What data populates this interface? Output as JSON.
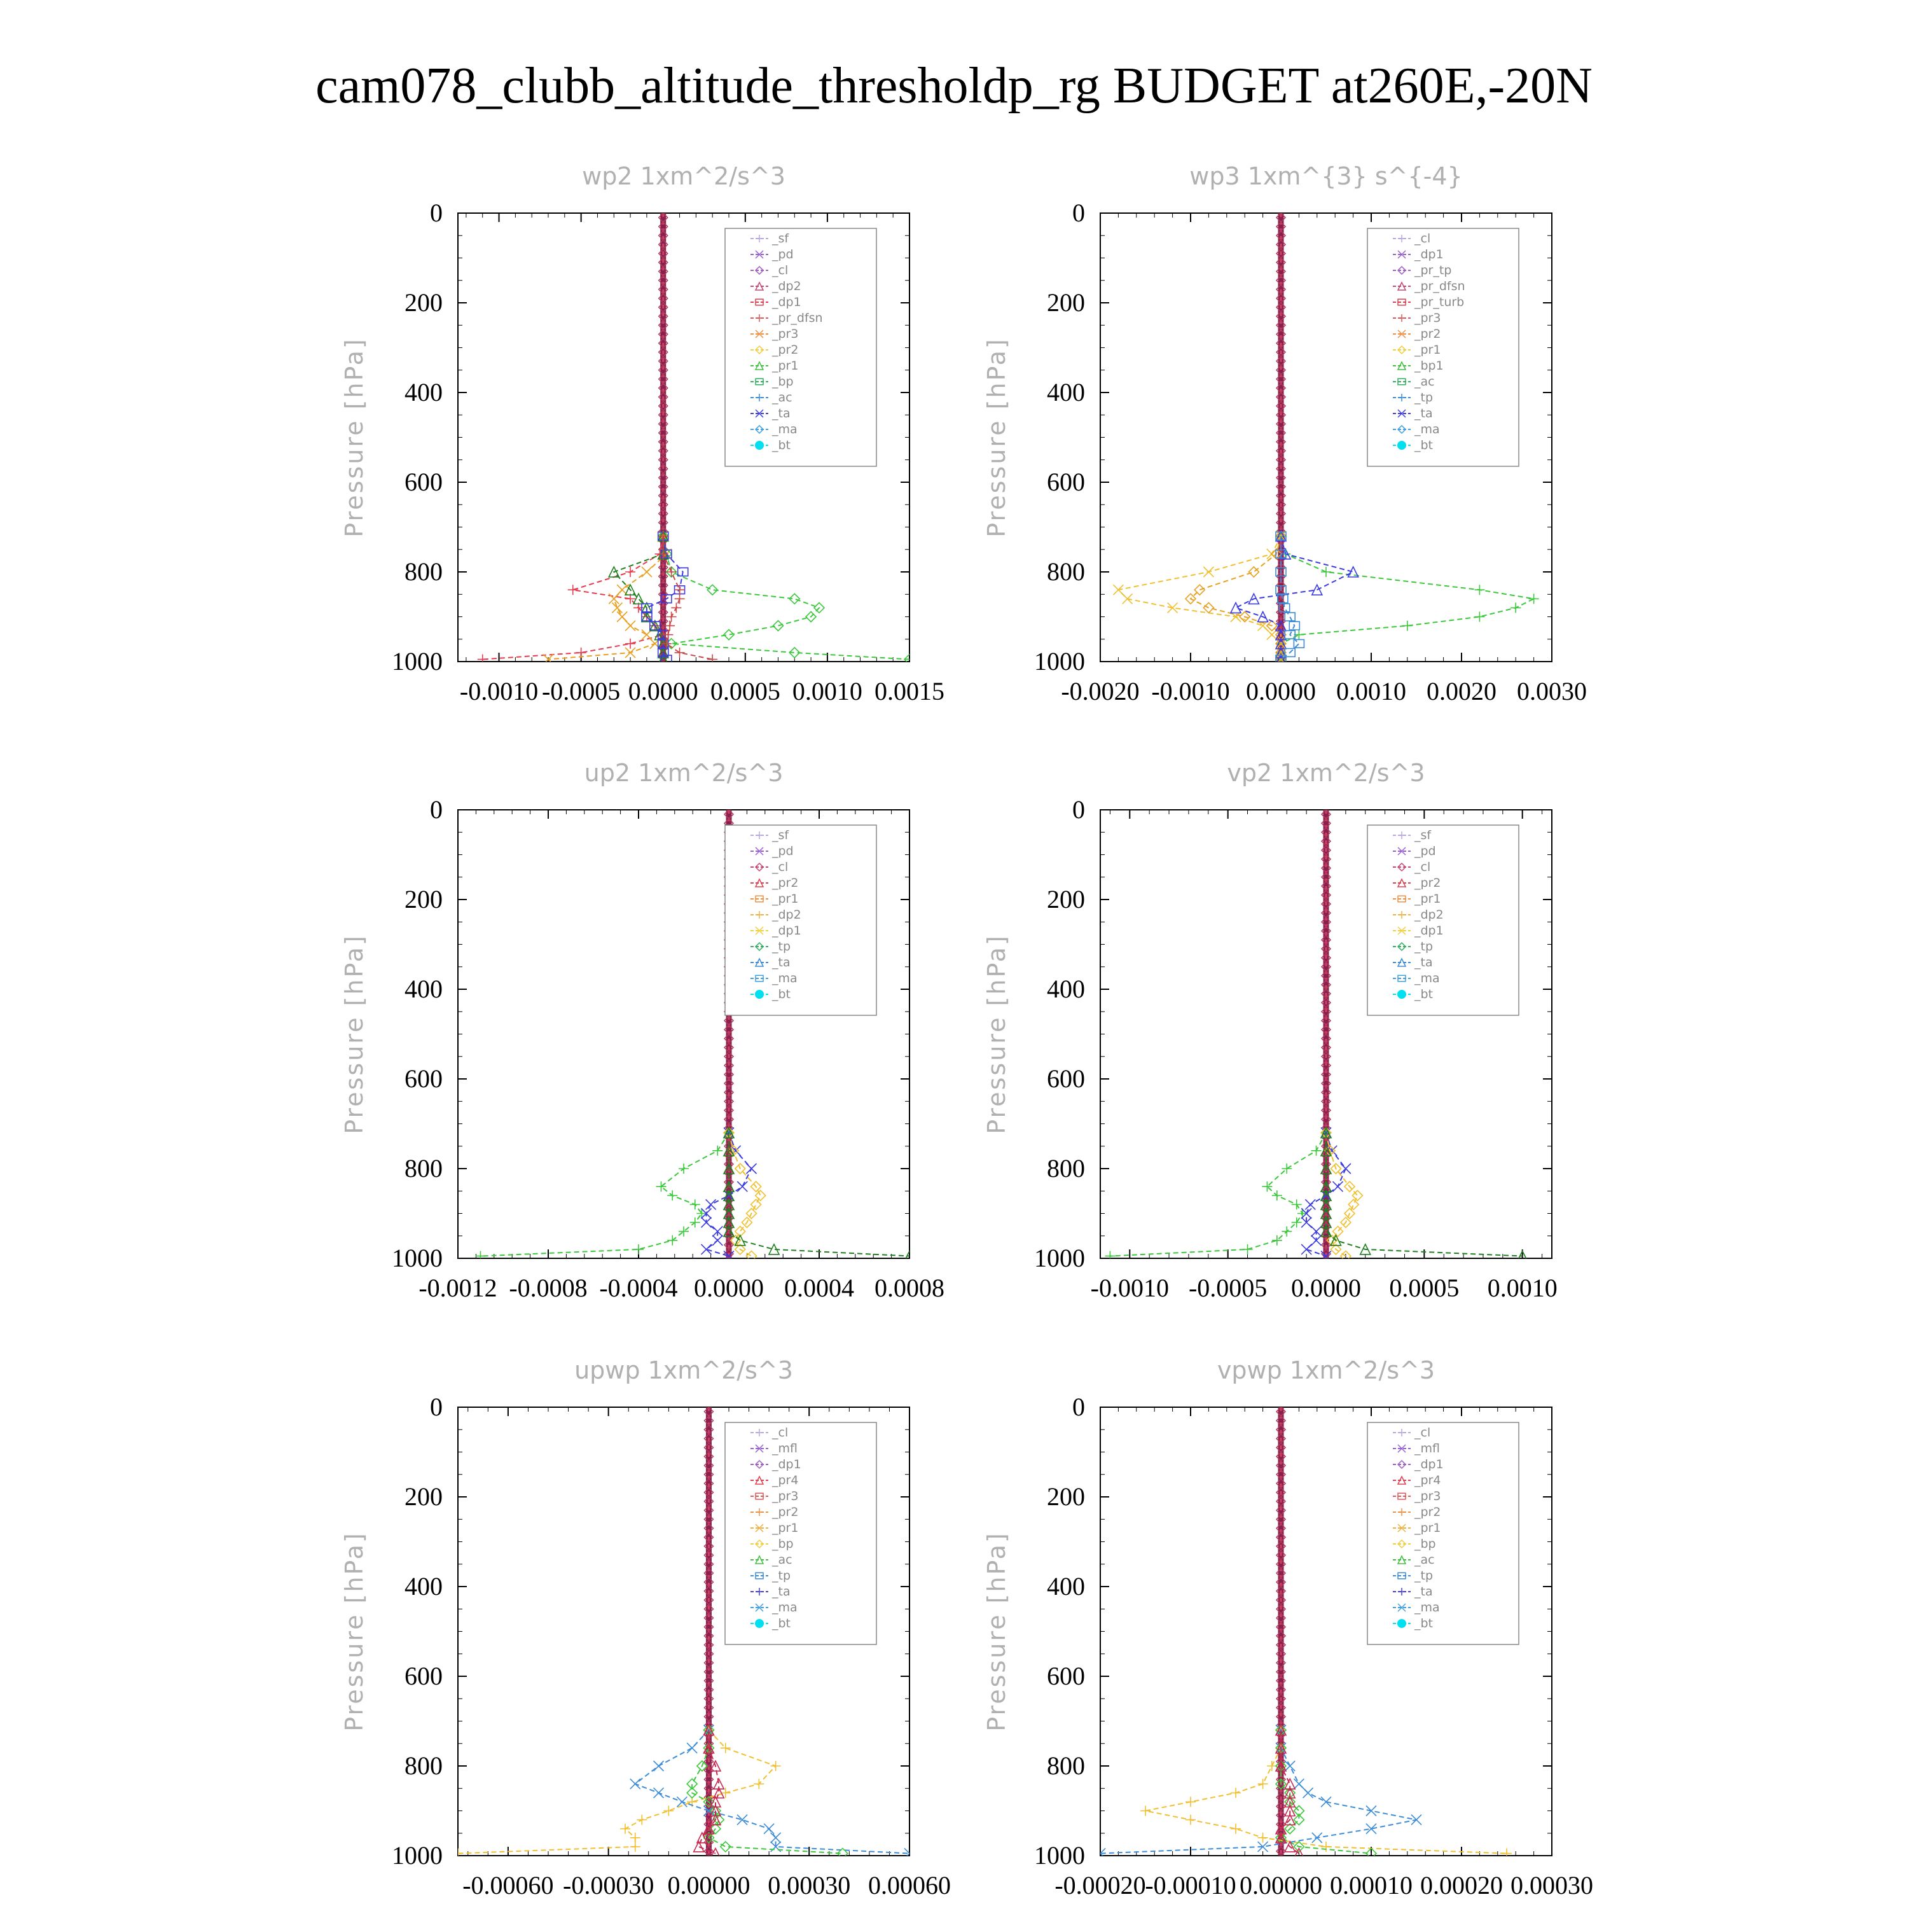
{
  "title": "cam078_clubb_altitude_thresholdp_rg  BUDGET at260E,-20N",
  "chart_data": [
    {
      "type": "line",
      "title": "wp2   1xm^2/s^3",
      "ylabel": "Pressure [hPa]",
      "ylim": [
        1000,
        0
      ],
      "yticks": [
        "0",
        "200",
        "400",
        "600",
        "800",
        "1000"
      ],
      "xlim": [
        -0.00125,
        0.0015
      ],
      "xticks": [
        -0.001,
        -0.0005,
        0.0,
        0.0005,
        0.001,
        0.0015
      ],
      "xtick_labels": [
        "-0.0010",
        "-0.0005",
        "0.0000",
        "0.0005",
        "0.0010",
        "0.0015"
      ],
      "levels": [
        720,
        760,
        800,
        840,
        860,
        880,
        900,
        920,
        940,
        960,
        980,
        995
      ],
      "legend": [
        "_sf",
        "_pd",
        "_cl",
        "_dp2",
        "_dp1",
        "_pr_dfsn",
        "_pr3",
        "_pr2",
        "_pr1",
        "_bp",
        "_ac",
        "_ta",
        "_ma",
        "_bt"
      ],
      "series": [
        {
          "name": "_dp1",
          "color": "#e63c50",
          "x": [
            0,
            -2e-05,
            -0.0002,
            -0.00055,
            -0.0002,
            -0.00015,
            -0.0001,
            -5e-05,
            0.0,
            -0.0002,
            -0.0005,
            -0.0011
          ]
        },
        {
          "name": "_pr1",
          "color": "#e8a020",
          "x": [
            0,
            2e-05,
            -0.0001,
            -0.00025,
            -0.0003,
            -0.00028,
            -0.00025,
            -0.0002,
            -0.0001,
            -5e-05,
            -0.0002,
            -0.0007
          ]
        },
        {
          "name": "_bp",
          "color": "#3cc83c",
          "x": [
            0,
            2e-05,
            5e-05,
            0.0003,
            0.0008,
            0.00095,
            0.0009,
            0.0007,
            0.0004,
            5e-05,
            0.0008,
            0.0015
          ]
        },
        {
          "name": "_ac",
          "color": "#208020",
          "x": [
            0,
            0.0,
            -0.0003,
            -0.0002,
            -0.00015,
            -0.0001,
            -0.0001,
            -5e-05,
            -2e-05,
            0.0,
            0.0,
            0.0
          ]
        },
        {
          "name": "_ta",
          "color": "#3c3ce0",
          "x": [
            0,
            2e-05,
            0.00012,
            0.0001,
            2e-05,
            -0.0001,
            -0.0001,
            -5e-05,
            0.0,
            0.0,
            0.0,
            2e-05
          ]
        },
        {
          "name": "_pr2",
          "color": "#c84848",
          "x": [
            0,
            0.0,
            5e-05,
            0.0001,
            0.0001,
            8e-05,
            5e-05,
            4e-05,
            3e-05,
            2e-05,
            0.0001,
            0.0003
          ]
        }
      ]
    },
    {
      "type": "line",
      "title": "wp3   1xm^{3} s^{-4}",
      "ylabel": "Pressure [hPa]",
      "ylim": [
        1000,
        0
      ],
      "yticks": [
        "0",
        "200",
        "400",
        "600",
        "800",
        "1000"
      ],
      "xlim": [
        -0.002,
        0.003
      ],
      "xticks": [
        -0.002,
        -0.001,
        0.0,
        0.001,
        0.002,
        0.003
      ],
      "xtick_labels": [
        "-0.0020",
        "-0.0010",
        "0.0000",
        "0.0010",
        "0.0020",
        "0.0030"
      ],
      "levels": [
        720,
        760,
        800,
        840,
        860,
        880,
        900,
        920,
        940,
        960,
        980,
        995
      ],
      "legend": [
        "_cl",
        "_dp1",
        "_pr_tp",
        "_pr_dfsn",
        "_pr_turb",
        "_pr3",
        "_pr2",
        "_pr1",
        "_bp1",
        "_ac",
        "_tp",
        "_ta",
        "_ma",
        "_bt"
      ],
      "series": [
        {
          "name": "_bp1",
          "color": "#3cc83c",
          "x": [
            0,
            5e-05,
            0.0005,
            0.0022,
            0.0028,
            0.0026,
            0.0022,
            0.0014,
            0.0002,
            0.0,
            0.0,
            0.0
          ]
        },
        {
          "name": "_pr1",
          "color": "#f0c030",
          "x": [
            0,
            -0.0001,
            -0.0008,
            -0.0018,
            -0.0017,
            -0.0012,
            -0.0005,
            -0.0002,
            -0.0001,
            0.0,
            0.0,
            0.0
          ]
        },
        {
          "name": "_pr2",
          "color": "#e8a020",
          "x": [
            0,
            -5e-05,
            -0.0003,
            -0.0009,
            -0.001,
            -0.0008,
            -0.0004,
            -0.0001,
            0.0,
            0.0,
            0.0,
            0.0
          ]
        },
        {
          "name": "_ta",
          "color": "#3c3ce0",
          "x": [
            0,
            5e-05,
            0.0008,
            0.0004,
            -0.0003,
            -0.0005,
            -0.0002,
            0.0,
            0.0,
            0.0,
            0.0,
            0.0
          ]
        },
        {
          "name": "_ma",
          "color": "#3c8cd8",
          "x": [
            0,
            0.0,
            0.0,
            0.0,
            2e-05,
            4e-05,
            0.0001,
            0.00015,
            0.0001,
            0.0002,
            0.0001,
            0.0
          ]
        }
      ]
    },
    {
      "type": "line",
      "title": "up2   1xm^2/s^3",
      "ylabel": "Pressure [hPa]",
      "ylim": [
        1000,
        0
      ],
      "yticks": [
        "0",
        "200",
        "400",
        "600",
        "800",
        "1000"
      ],
      "xlim": [
        -0.0012,
        0.0008
      ],
      "xticks": [
        -0.0012,
        -0.0008,
        -0.0004,
        0.0,
        0.0004,
        0.0008
      ],
      "xtick_labels": [
        "-0.0012",
        "-0.0008",
        "-0.0004",
        "0.0000",
        "0.0004",
        "0.0008"
      ],
      "levels": [
        720,
        760,
        800,
        840,
        860,
        880,
        900,
        920,
        940,
        960,
        980,
        995
      ],
      "legend": [
        "_sf",
        "_pd",
        "_cl",
        "_pr2",
        "_pr1",
        "_dp2",
        "_dp1",
        "_tp",
        "_ta",
        "_ma",
        "_bt"
      ],
      "series": [
        {
          "name": "_dp1",
          "color": "#3cc83c",
          "x": [
            0,
            -5e-05,
            -0.0002,
            -0.0003,
            -0.00025,
            -0.00015,
            -0.00012,
            -0.00015,
            -0.0002,
            -0.00025,
            -0.0004,
            -0.0011
          ]
        },
        {
          "name": "_ta",
          "color": "#3c3ce0",
          "x": [
            0,
            3e-05,
            0.0001,
            6e-05,
            0.0,
            -8e-05,
            -0.0001,
            -0.0001,
            -5e-05,
            -5e-05,
            -0.0001,
            0.0
          ]
        },
        {
          "name": "_pr1",
          "color": "#f0c030",
          "x": [
            0,
            2e-05,
            5e-05,
            0.00012,
            0.00014,
            0.00012,
            0.0001,
            8e-05,
            5e-05,
            3e-05,
            5e-05,
            0.0001
          ]
        },
        {
          "name": "_dp2",
          "color": "#208020",
          "x": [
            0,
            0.0,
            0.0,
            0.0,
            0.0,
            0.0,
            0.0,
            0.0,
            0.0,
            5e-05,
            0.0002,
            0.0008
          ]
        }
      ]
    },
    {
      "type": "line",
      "title": "vp2   1xm^2/s^3",
      "ylabel": "Pressure [hPa]",
      "ylim": [
        1000,
        0
      ],
      "yticks": [
        "0",
        "200",
        "400",
        "600",
        "800",
        "1000"
      ],
      "xlim": [
        -0.00115,
        0.00115
      ],
      "xticks": [
        -0.001,
        -0.0005,
        0.0,
        0.0005,
        0.001
      ],
      "xtick_labels": [
        "-0.0010",
        "-0.0005",
        "0.0000",
        "0.0005",
        "0.0010"
      ],
      "levels": [
        720,
        760,
        800,
        840,
        860,
        880,
        900,
        920,
        940,
        960,
        980,
        995
      ],
      "legend": [
        "_sf",
        "_pd",
        "_cl",
        "_pr2",
        "_pr1",
        "_dp2",
        "_dp1",
        "_tp",
        "_ta",
        "_ma",
        "_bt"
      ],
      "series": [
        {
          "name": "_dp1",
          "color": "#3cc83c",
          "x": [
            0,
            -5e-05,
            -0.0002,
            -0.0003,
            -0.00025,
            -0.00015,
            -0.00012,
            -0.00015,
            -0.0002,
            -0.00025,
            -0.0004,
            -0.0011
          ]
        },
        {
          "name": "_ta",
          "color": "#3c3ce0",
          "x": [
            0,
            3e-05,
            0.0001,
            6e-05,
            0.0,
            -8e-05,
            -0.0001,
            -0.0001,
            -5e-05,
            -5e-05,
            -0.0001,
            0.0
          ]
        },
        {
          "name": "_pr1",
          "color": "#f0c030",
          "x": [
            0,
            2e-05,
            5e-05,
            0.00012,
            0.00016,
            0.00014,
            0.00012,
            0.0001,
            6e-05,
            3e-05,
            5e-05,
            0.0001
          ]
        },
        {
          "name": "_dp2",
          "color": "#208020",
          "x": [
            0,
            0.0,
            0.0,
            0.0,
            0.0,
            0.0,
            0.0,
            0.0,
            0.0,
            5e-05,
            0.0002,
            0.001
          ]
        }
      ]
    },
    {
      "type": "line",
      "title": "upwp   1xm^2/s^3",
      "ylabel": "Pressure [hPa]",
      "ylim": [
        1000,
        0
      ],
      "yticks": [
        "0",
        "200",
        "400",
        "600",
        "800",
        "1000"
      ],
      "xlim": [
        -0.00075,
        0.0006
      ],
      "xticks": [
        -0.0006,
        -0.0003,
        0.0,
        0.0003,
        0.0006
      ],
      "xtick_labels": [
        "-0.00060",
        "-0.00030",
        "0.00000",
        "0.00030",
        "0.00060"
      ],
      "levels": [
        720,
        760,
        800,
        840,
        860,
        880,
        900,
        920,
        940,
        960,
        980,
        995
      ],
      "legend": [
        "_cl",
        "_mfl",
        "_dp1",
        "_pr4",
        "_pr3",
        "_pr2",
        "_pr1",
        "_bp",
        "_ac",
        "_tp",
        "_ta",
        "_ma",
        "_bt"
      ],
      "series": [
        {
          "name": "_pr1",
          "color": "#f0c030",
          "x": [
            0,
            5e-05,
            0.0002,
            0.00015,
            5e-05,
            -5e-05,
            -0.00012,
            -0.0002,
            -0.00025,
            -0.00022,
            -0.00022,
            -0.00075
          ]
        },
        {
          "name": "_tp",
          "color": "#3c8cd8",
          "x": [
            0,
            -5e-05,
            -0.00015,
            -0.00022,
            -0.00015,
            -8e-05,
            0.0,
            0.0001,
            0.00018,
            0.0002,
            0.0002,
            0.0006
          ]
        },
        {
          "name": "_bp",
          "color": "#3cc83c",
          "x": [
            0,
            0.0,
            -2e-05,
            -5e-05,
            -5e-05,
            0.0,
            2e-05,
            3e-05,
            2e-05,
            0.0,
            5e-05,
            0.0004
          ]
        },
        {
          "name": "_dp1",
          "color": "#c82850",
          "x": [
            0,
            0.0,
            2e-05,
            3e-05,
            3e-05,
            2e-05,
            2e-05,
            2e-05,
            0.0,
            -2e-05,
            -3e-05,
            2e-05
          ]
        }
      ]
    },
    {
      "type": "line",
      "title": "vpwp   1xm^2/s^3",
      "ylabel": "Pressure [hPa]",
      "ylim": [
        1000,
        0
      ],
      "yticks": [
        "0",
        "200",
        "400",
        "600",
        "800",
        "1000"
      ],
      "xlim": [
        -0.0002,
        0.0003
      ],
      "xticks": [
        -0.0002,
        -0.0001,
        0.0,
        0.0001,
        0.0002,
        0.0003
      ],
      "xtick_labels": [
        "-0.00020",
        "-0.00010",
        "0.00000",
        "0.00010",
        "0.00020",
        "0.00030"
      ],
      "levels": [
        720,
        760,
        800,
        840,
        860,
        880,
        900,
        920,
        940,
        960,
        980,
        995
      ],
      "legend": [
        "_cl",
        "_mfl",
        "_dp1",
        "_pr4",
        "_pr3",
        "_pr2",
        "_pr1",
        "_bp",
        "_ac",
        "_tp",
        "_ta",
        "_ma",
        "_bt"
      ],
      "series": [
        {
          "name": "_pr1",
          "color": "#f0c030",
          "x": [
            0,
            0.0,
            -1e-05,
            -2e-05,
            -5e-05,
            -0.0001,
            -0.00015,
            -0.0001,
            -5e-05,
            -2e-05,
            5e-05,
            0.00025
          ]
        },
        {
          "name": "_tp",
          "color": "#3c8cd8",
          "x": [
            0,
            0.0,
            1e-05,
            2e-05,
            3e-05,
            5e-05,
            0.0001,
            0.00015,
            0.0001,
            4e-05,
            -2e-05,
            -0.0002
          ]
        },
        {
          "name": "_bp",
          "color": "#3cc83c",
          "x": [
            0,
            0.0,
            0.0,
            0.0,
            1e-05,
            1e-05,
            2e-05,
            2e-05,
            1e-05,
            0.0,
            2e-05,
            0.0001
          ]
        },
        {
          "name": "_dp1",
          "color": "#c82850",
          "x": [
            0,
            0.0,
            0.0,
            1e-05,
            1e-05,
            1e-05,
            1e-05,
            1e-05,
            0.0,
            0.0,
            1e-05,
            2e-05
          ]
        }
      ]
    }
  ]
}
